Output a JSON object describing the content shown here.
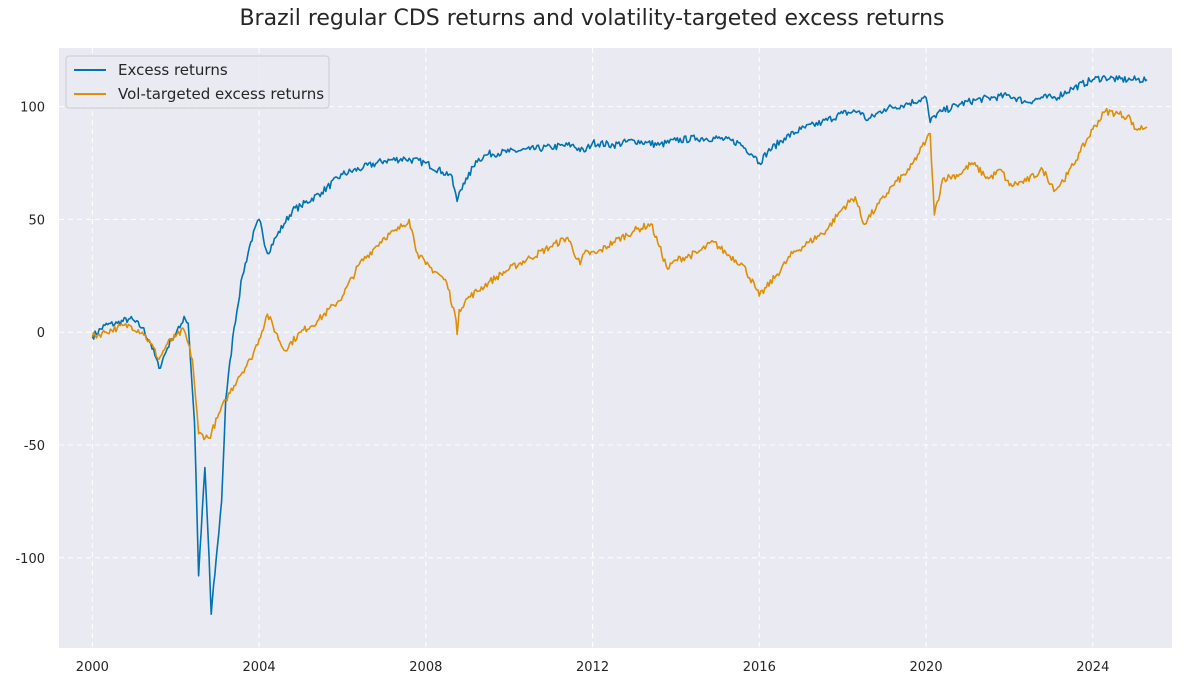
{
  "chart_data": {
    "type": "line",
    "title": "Brazil regular CDS returns and volatility-targeted excess returns",
    "xlabel": "",
    "ylabel": "",
    "xlim": [
      1999.2,
      2025.9
    ],
    "ylim": [
      -140,
      126
    ],
    "xticks": [
      "2000",
      "2004",
      "2008",
      "2012",
      "2016",
      "2020",
      "2024"
    ],
    "yticks": [
      "100",
      "50",
      "0",
      "-50",
      "-100"
    ],
    "grid": true,
    "legend_position": "top-left",
    "colors": {
      "excess": "#0173b2",
      "vol": "#de8f05",
      "background": "#eaeaf2",
      "grid": "#ffffff"
    },
    "series": [
      {
        "name": "Excess returns",
        "x": [
          2000.0,
          2000.3,
          2000.6,
          2000.9,
          2001.2,
          2001.4,
          2001.6,
          2001.8,
          2001.9,
          2002.1,
          2002.2,
          2002.3,
          2002.45,
          2002.55,
          2002.7,
          2002.8,
          2002.85,
          2003.0,
          2003.1,
          2003.2,
          2003.4,
          2003.6,
          2003.8,
          2004.0,
          2004.2,
          2004.4,
          2004.6,
          2004.8,
          2005.0,
          2005.5,
          2006.0,
          2006.5,
          2007.0,
          2007.5,
          2008.0,
          2008.4,
          2008.6,
          2008.75,
          2008.8,
          2008.9,
          2009.0,
          2009.2,
          2009.5,
          2010.0,
          2010.5,
          2011.0,
          2011.5,
          2011.8,
          2012.0,
          2012.5,
          2013.0,
          2013.3,
          2013.6,
          2014.0,
          2014.5,
          2015.0,
          2015.5,
          2015.9,
          2016.0,
          2016.2,
          2016.6,
          2017.0,
          2017.5,
          2018.0,
          2018.4,
          2018.6,
          2019.0,
          2019.5,
          2020.0,
          2020.1,
          2020.2,
          2020.4,
          2020.8,
          2021.2,
          2021.6,
          2022.0,
          2022.4,
          2022.8,
          2023.1,
          2023.5,
          2024.0,
          2024.3,
          2024.6,
          2024.9,
          2025.3
        ],
        "y": [
          -2,
          3,
          4,
          6,
          2,
          -5,
          -16,
          -7,
          -3,
          2,
          7,
          4,
          -40,
          -108,
          -60,
          -100,
          -125,
          -95,
          -75,
          -30,
          2,
          25,
          40,
          50,
          35,
          42,
          48,
          54,
          56,
          62,
          70,
          73,
          76,
          77,
          75,
          71,
          70,
          58,
          62,
          66,
          68,
          76,
          79,
          80,
          81,
          82,
          83,
          80,
          84,
          83,
          85,
          84,
          83,
          85,
          86,
          86,
          84,
          78,
          75,
          80,
          86,
          90,
          93,
          97,
          98,
          94,
          99,
          101,
          104,
          93,
          96,
          98,
          101,
          103,
          104,
          105,
          102,
          104,
          104,
          108,
          112,
          113,
          112,
          112,
          112
        ],
        "values_note": ""
      },
      {
        "name": "Vol-targeted excess returns",
        "x": [
          2000.0,
          2000.3,
          2000.6,
          2000.9,
          2001.2,
          2001.4,
          2001.6,
          2001.8,
          2002.0,
          2002.2,
          2002.4,
          2002.55,
          2002.8,
          2003.0,
          2003.2,
          2003.5,
          2003.8,
          2004.0,
          2004.2,
          2004.6,
          2005.0,
          2005.4,
          2005.8,
          2006.0,
          2006.4,
          2006.8,
          2007.0,
          2007.3,
          2007.6,
          2007.8,
          2008.0,
          2008.3,
          2008.5,
          2008.7,
          2008.75,
          2008.8,
          2009.0,
          2009.5,
          2010.0,
          2010.5,
          2011.0,
          2011.4,
          2011.7,
          2011.8,
          2012.1,
          2012.5,
          2013.0,
          2013.4,
          2013.6,
          2013.8,
          2014.0,
          2014.5,
          2014.9,
          2015.2,
          2015.6,
          2015.9,
          2016.0,
          2016.4,
          2016.8,
          2017.2,
          2017.6,
          2018.0,
          2018.3,
          2018.5,
          2018.8,
          2019.2,
          2019.6,
          2020.0,
          2020.1,
          2020.2,
          2020.4,
          2020.8,
          2021.1,
          2021.5,
          2021.8,
          2022.0,
          2022.4,
          2022.8,
          2023.1,
          2023.4,
          2023.7,
          2024.0,
          2024.3,
          2024.6,
          2024.9,
          2025.0,
          2025.3
        ],
        "y": [
          -2,
          0,
          2,
          3,
          0,
          -5,
          -12,
          -5,
          -2,
          1,
          -12,
          -45,
          -47,
          -38,
          -30,
          -20,
          -12,
          -3,
          8,
          -8,
          0,
          5,
          12,
          16,
          30,
          38,
          42,
          45,
          50,
          35,
          30,
          26,
          22,
          8,
          -1,
          10,
          15,
          22,
          28,
          33,
          38,
          42,
          30,
          35,
          35,
          40,
          45,
          48,
          38,
          28,
          32,
          35,
          40,
          35,
          30,
          20,
          16,
          25,
          35,
          40,
          45,
          55,
          60,
          48,
          55,
          65,
          72,
          85,
          88,
          52,
          68,
          70,
          75,
          68,
          72,
          65,
          67,
          72,
          63,
          70,
          80,
          90,
          98,
          97,
          95,
          90,
          91
        ],
        "values_note": ""
      }
    ]
  }
}
